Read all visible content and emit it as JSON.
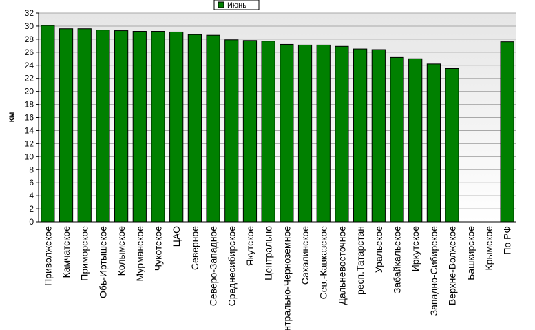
{
  "chart_data": {
    "type": "bar",
    "title": "",
    "xlabel": "",
    "ylabel": "км",
    "ylim": [
      0,
      32
    ],
    "ytick_step": 2,
    "grid": true,
    "legend_position": "top-center",
    "categories": [
      "Приволжское",
      "Камчатское",
      "Приморское",
      "Обь-Иртышское",
      "Колымское",
      "Мурманское",
      "Чукотское",
      "ЦАО",
      "Северное",
      "Северо-Западное",
      "Среднесибирское",
      "Якутское",
      "Центрально",
      "Центрально-Черноземное",
      "Сахалинское",
      "Сев.-Кавказское",
      "Дальневосточное",
      "респ.Татарстан",
      "Уральское",
      "Забайкальское",
      "Иркутское",
      "Западно-Сибирское",
      "Верхне-Волжское",
      "Башкирское",
      "Крымское",
      "По РФ"
    ],
    "series": [
      {
        "name": "Июнь",
        "color": "#008000",
        "values": [
          30.1,
          29.6,
          29.6,
          29.4,
          29.3,
          29.2,
          29.2,
          29.1,
          28.7,
          28.6,
          27.9,
          27.8,
          27.7,
          27.2,
          27.1,
          27.1,
          26.9,
          26.5,
          26.4,
          25.2,
          25.0,
          24.2,
          23.5,
          0,
          0,
          27.6
        ]
      }
    ]
  }
}
